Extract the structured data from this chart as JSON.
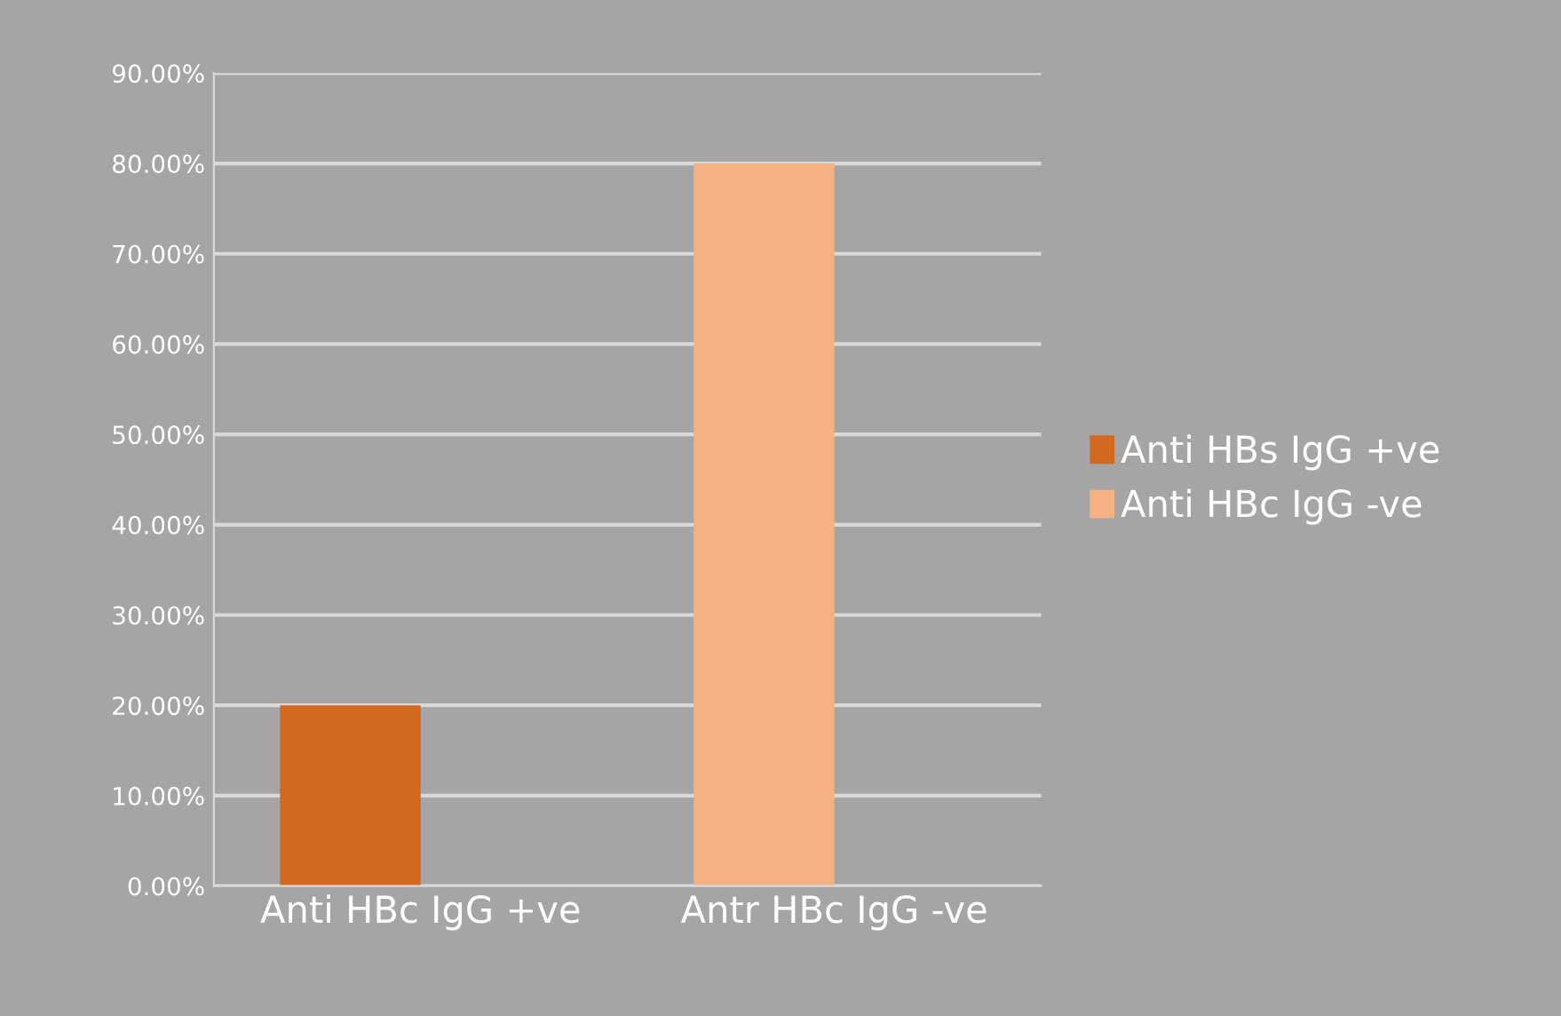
{
  "chart_data": {
    "type": "bar",
    "categories": [
      "Anti HBc IgG +ve",
      "Antr HBc IgG -ve"
    ],
    "series": [
      {
        "name": "Anti HBs IgG +ve",
        "color": "#d2691e",
        "values": [
          20,
          null
        ]
      },
      {
        "name": "Anti HBc IgG -ve",
        "color": "#f4b183",
        "values": [
          null,
          80
        ]
      }
    ],
    "ylim": [
      0,
      90
    ],
    "yticks": [
      {
        "value": 0,
        "label": "0.00%"
      },
      {
        "value": 10,
        "label": "10.00%"
      },
      {
        "value": 20,
        "label": "20.00%"
      },
      {
        "value": 30,
        "label": "30.00%"
      },
      {
        "value": 40,
        "label": "40.00%"
      },
      {
        "value": 50,
        "label": "50.00%"
      },
      {
        "value": 60,
        "label": "60.00%"
      },
      {
        "value": 70,
        "label": "70.00%"
      },
      {
        "value": 80,
        "label": "80.00%"
      },
      {
        "value": 90,
        "label": "90.00%"
      }
    ],
    "grid": "y",
    "legend": "right"
  }
}
